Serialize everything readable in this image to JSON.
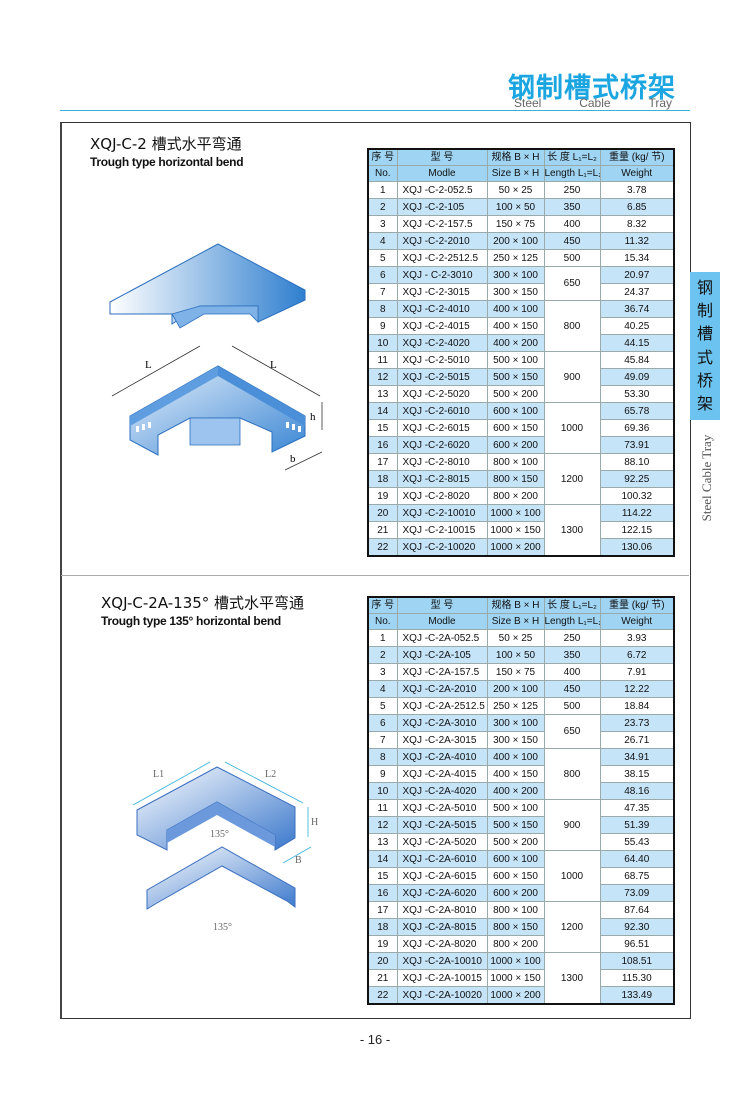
{
  "header": {
    "brand_cn": "钢制槽式桥架",
    "brand_en": [
      "Steel",
      "Cable",
      "Tray"
    ],
    "accent_color": "#1ba6e2"
  },
  "side_tab": {
    "chars": [
      "钢",
      "制",
      "槽",
      "式",
      "桥",
      "架"
    ],
    "english": "Steel Cable Tray",
    "color": "#6dc3ef"
  },
  "columns": {
    "no_cn": "序 号",
    "no_en": "No.",
    "model_cn": "型 号",
    "model_en": "Modle",
    "size_cn": "规格 B × H",
    "size_en": "Size  B × H",
    "length_cn": "长 度 L₁=L₂",
    "length_en": "Length L₁=L₂",
    "weight_cn": "重量 (kg/ 节)",
    "weight_en": "Weight"
  },
  "sections": [
    {
      "title": "XQJ-C-2 槽式水平弯通",
      "subtitle": "Trough type horizontal bend",
      "diagram_labels": {
        "l1": "L",
        "l2": "L",
        "h": "h",
        "b": "b"
      },
      "rows": [
        [
          "1",
          "XQJ -C-2-052.5",
          "50 × 25",
          "250",
          "3.78"
        ],
        [
          "2",
          "XQJ -C-2-105",
          "100 × 50",
          "350",
          "6.85"
        ],
        [
          "3",
          "XQJ -C-2-157.5",
          "150 × 75",
          "400",
          "8.32"
        ],
        [
          "4",
          "XQJ -C-2-2010",
          "200 × 100",
          "450",
          "11.32"
        ],
        [
          "5",
          "XQJ -C-2-2512.5",
          "250 × 125",
          "500",
          "15.34"
        ],
        [
          "6",
          "XQJ - C-2-3010",
          "300 × 100",
          "650",
          "20.97"
        ],
        [
          "7",
          "XQJ -C-2-3015",
          "300 × 150",
          "650",
          "24.37"
        ],
        [
          "8",
          "XQJ -C-2-4010",
          "400 × 100",
          "800",
          "36.74"
        ],
        [
          "9",
          "XQJ -C-2-4015",
          "400 × 150",
          "800",
          "40.25"
        ],
        [
          "10",
          "XQJ -C-2-4020",
          "400 × 200",
          "800",
          "44.15"
        ],
        [
          "11",
          "XQJ -C-2-5010",
          "500 × 100",
          "900",
          "45.84"
        ],
        [
          "12",
          "XQJ -C-2-5015",
          "500 × 150",
          "900",
          "49.09"
        ],
        [
          "13",
          "XQJ -C-2-5020",
          "500 × 200",
          "900",
          "53.30"
        ],
        [
          "14",
          "XQJ -C-2-6010",
          "600 × 100",
          "1000",
          "65.78"
        ],
        [
          "15",
          "XQJ -C-2-6015",
          "600 × 150",
          "1000",
          "69.36"
        ],
        [
          "16",
          "XQJ -C-2-6020",
          "600 × 200",
          "1000",
          "73.91"
        ],
        [
          "17",
          "XQJ -C-2-8010",
          "800 × 100",
          "1200",
          "88.10"
        ],
        [
          "18",
          "XQJ -C-2-8015",
          "800 × 150",
          "1200",
          "92.25"
        ],
        [
          "19",
          "XQJ -C-2-8020",
          "800 × 200",
          "1200",
          "100.32"
        ],
        [
          "20",
          "XQJ -C-2-10010",
          "1000 × 100",
          "1300",
          "114.22"
        ],
        [
          "21",
          "XQJ -C-2-10015",
          "1000 × 150",
          "1300",
          "122.15"
        ],
        [
          "22",
          "XQJ -C-2-10020",
          "1000 × 200",
          "1300",
          "130.06"
        ]
      ]
    },
    {
      "title": "XQJ-C-2A-135° 槽式水平弯通",
      "subtitle": "Trough type 135° horizontal bend",
      "diagram_labels": {
        "l1": "L1",
        "l2": "L2",
        "h": "H",
        "b": "B",
        "angle": "135°",
        "cover_angle": "135°"
      },
      "rows": [
        [
          "1",
          "XQJ -C-2A-052.5",
          "50 × 25",
          "250",
          "3.93"
        ],
        [
          "2",
          "XQJ -C-2A-105",
          "100 × 50",
          "350",
          "6.72"
        ],
        [
          "3",
          "XQJ -C-2A-157.5",
          "150 × 75",
          "400",
          "7.91"
        ],
        [
          "4",
          "XQJ -C-2A-2010",
          "200 × 100",
          "450",
          "12.22"
        ],
        [
          "5",
          "XQJ -C-2A-2512.5",
          "250 × 125",
          "500",
          "18.84"
        ],
        [
          "6",
          "XQJ -C-2A-3010",
          "300 × 100",
          "650",
          "23.73"
        ],
        [
          "7",
          "XQJ -C-2A-3015",
          "300 × 150",
          "650",
          "26.71"
        ],
        [
          "8",
          "XQJ -C-2A-4010",
          "400 × 100",
          "800",
          "34.91"
        ],
        [
          "9",
          "XQJ -C-2A-4015",
          "400 × 150",
          "800",
          "38.15"
        ],
        [
          "10",
          "XQJ -C-2A-4020",
          "400 × 200",
          "800",
          "48.16"
        ],
        [
          "11",
          "XQJ -C-2A-5010",
          "500 × 100",
          "900",
          "47.35"
        ],
        [
          "12",
          "XQJ -C-2A-5015",
          "500 × 150",
          "900",
          "51.39"
        ],
        [
          "13",
          "XQJ -C-2A-5020",
          "500 × 200",
          "900",
          "55.43"
        ],
        [
          "14",
          "XQJ -C-2A-6010",
          "600 × 100",
          "1000",
          "64.40"
        ],
        [
          "15",
          "XQJ -C-2A-6015",
          "600 × 150",
          "1000",
          "68.75"
        ],
        [
          "16",
          "XQJ -C-2A-6020",
          "600 × 200",
          "1000",
          "73.09"
        ],
        [
          "17",
          "XQJ -C-2A-8010",
          "800 × 100",
          "1200",
          "87.64"
        ],
        [
          "18",
          "XQJ -C-2A-8015",
          "800 × 150",
          "1200",
          "92.30"
        ],
        [
          "19",
          "XQJ -C-2A-8020",
          "800 × 200",
          "1200",
          "96.51"
        ],
        [
          "20",
          "XQJ -C-2A-10010",
          "1000 × 100",
          "1300",
          "108.51"
        ],
        [
          "21",
          "XQJ -C-2A-10015",
          "1000 × 150",
          "1300",
          "115.30"
        ],
        [
          "22",
          "XQJ -C-2A-10020",
          "1000 × 200",
          "1300",
          "133.49"
        ]
      ]
    }
  ],
  "footer": {
    "page_number": "- 16 -"
  }
}
